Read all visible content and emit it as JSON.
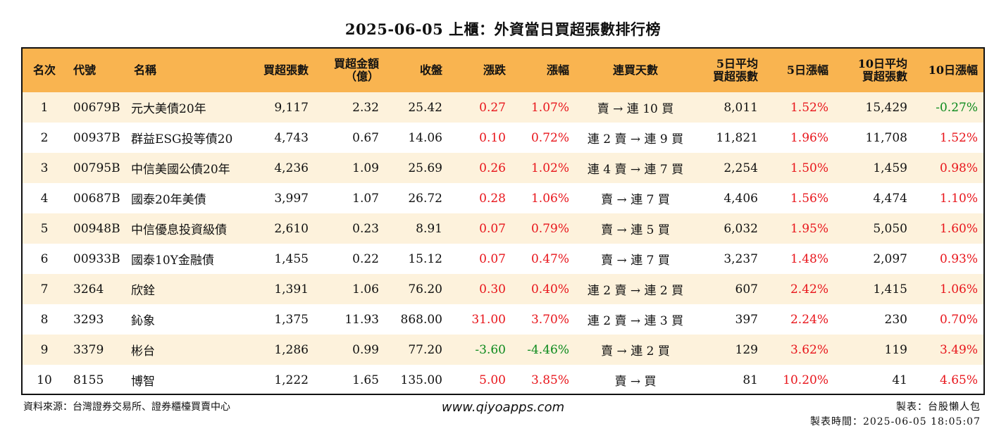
{
  "title": "2025-06-05 上櫃：外資當日買超張數排行榜",
  "headers": {
    "rank": "名次",
    "code": "代號",
    "name": "名稱",
    "net_buy_lots": "買超張數",
    "net_buy_amount_1": "買超金額",
    "net_buy_amount_2": "（億）",
    "close": "收盤",
    "change": "漲跌",
    "change_pct": "漲幅",
    "streak": "連買天數",
    "avg5_1": "5日平均",
    "avg5_2": "買超張數",
    "chg5": "5日漲幅",
    "avg10_1": "10日平均",
    "avg10_2": "買超張數",
    "chg10": "10日漲幅"
  },
  "rows": [
    {
      "rank": "1",
      "code": "00679B",
      "name": "元大美債20年",
      "lots": "9,117",
      "amount": "2.32",
      "close": "25.42",
      "change": "0.27",
      "change_pct": "1.07%",
      "streak": "賣 → 連 10 買",
      "avg5": "8,011",
      "chg5": "1.52%",
      "avg10": "15,429",
      "chg10": "-0.27%"
    },
    {
      "rank": "2",
      "code": "00937B",
      "name": "群益ESG投等債20",
      "lots": "4,743",
      "amount": "0.67",
      "close": "14.06",
      "change": "0.10",
      "change_pct": "0.72%",
      "streak": "連 2 賣 → 連 9 買",
      "avg5": "11,821",
      "chg5": "1.96%",
      "avg10": "11,708",
      "chg10": "1.52%"
    },
    {
      "rank": "3",
      "code": "00795B",
      "name": "中信美國公債20年",
      "lots": "4,236",
      "amount": "1.09",
      "close": "25.69",
      "change": "0.26",
      "change_pct": "1.02%",
      "streak": "連 4 賣 → 連 7 買",
      "avg5": "2,254",
      "chg5": "1.50%",
      "avg10": "1,459",
      "chg10": "0.98%"
    },
    {
      "rank": "4",
      "code": "00687B",
      "name": "國泰20年美債",
      "lots": "3,997",
      "amount": "1.07",
      "close": "26.72",
      "change": "0.28",
      "change_pct": "1.06%",
      "streak": "賣 → 連 7 買",
      "avg5": "4,406",
      "chg5": "1.56%",
      "avg10": "4,474",
      "chg10": "1.10%"
    },
    {
      "rank": "5",
      "code": "00948B",
      "name": "中信優息投資級債",
      "lots": "2,610",
      "amount": "0.23",
      "close": "8.91",
      "change": "0.07",
      "change_pct": "0.79%",
      "streak": "賣 → 連 5 買",
      "avg5": "6,032",
      "chg5": "1.95%",
      "avg10": "5,050",
      "chg10": "1.60%"
    },
    {
      "rank": "6",
      "code": "00933B",
      "name": "國泰10Y金融債",
      "lots": "1,455",
      "amount": "0.22",
      "close": "15.12",
      "change": "0.07",
      "change_pct": "0.47%",
      "streak": "賣 → 連 7 買",
      "avg5": "3,237",
      "chg5": "1.48%",
      "avg10": "2,097",
      "chg10": "0.93%"
    },
    {
      "rank": "7",
      "code": "3264",
      "name": "欣銓",
      "lots": "1,391",
      "amount": "1.06",
      "close": "76.20",
      "change": "0.30",
      "change_pct": "0.40%",
      "streak": "連 2 賣 → 連 2 買",
      "avg5": "607",
      "chg5": "2.42%",
      "avg10": "1,415",
      "chg10": "1.06%"
    },
    {
      "rank": "8",
      "code": "3293",
      "name": "鈊象",
      "lots": "1,375",
      "amount": "11.93",
      "close": "868.00",
      "change": "31.00",
      "change_pct": "3.70%",
      "streak": "連 2 賣 → 連 3 買",
      "avg5": "397",
      "chg5": "2.24%",
      "avg10": "230",
      "chg10": "0.70%"
    },
    {
      "rank": "9",
      "code": "3379",
      "name": "彬台",
      "lots": "1,286",
      "amount": "0.99",
      "close": "77.20",
      "change": "-3.60",
      "change_pct": "-4.46%",
      "streak": "賣 → 連 2 買",
      "avg5": "129",
      "chg5": "3.62%",
      "avg10": "119",
      "chg10": "3.49%"
    },
    {
      "rank": "10",
      "code": "8155",
      "name": "博智",
      "lots": "1,222",
      "amount": "1.65",
      "close": "135.00",
      "change": "5.00",
      "change_pct": "3.85%",
      "streak": "賣 → 買",
      "avg5": "81",
      "chg5": "10.20%",
      "avg10": "41",
      "chg10": "4.65%"
    }
  ],
  "footer": {
    "source": "資料來源：台灣證券交易所、證券櫃檯買賣中心",
    "website": "www.qiyoapps.com",
    "maker": "製表：台股懶人包",
    "made_time": "製表時間：2025-06-05 18:05:07"
  },
  "colors": {
    "header_bg": "#f9b450",
    "row_alt_bg": "#fdf2dc",
    "up": "#e8151b",
    "down": "#0c8a1c"
  }
}
